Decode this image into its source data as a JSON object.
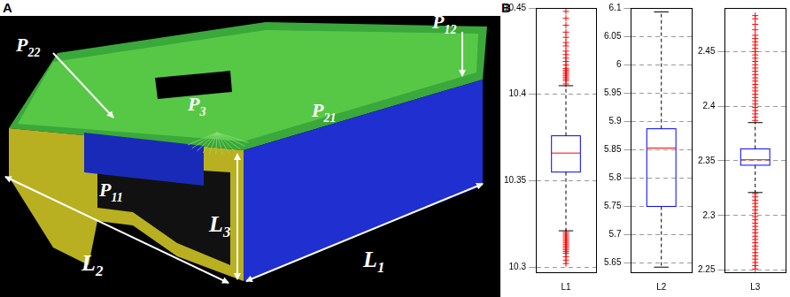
{
  "panel_labels": [
    "A",
    "B"
  ],
  "diagram": {
    "labels": [
      {
        "text": "P",
        "sub": "22"
      },
      {
        "text": "P",
        "sub": "12"
      },
      {
        "text": "P",
        "sub": "3"
      },
      {
        "text": "P",
        "sub": "21"
      },
      {
        "text": "P",
        "sub": "11"
      },
      {
        "text": "L",
        "sub": "3"
      },
      {
        "text": "L",
        "sub": "2"
      },
      {
        "text": "L",
        "sub": "1"
      }
    ]
  },
  "chart_data": [
    {
      "type": "box",
      "categories": [
        "L1"
      ],
      "color": "#0000ff",
      "q1": 10.355,
      "median": 10.366,
      "q3": 10.376,
      "whisker_low": 10.321,
      "whisker_high": 10.405,
      "outliers": [
        10.406,
        10.408,
        10.409,
        10.41,
        10.411,
        10.412,
        10.413,
        10.414,
        10.415,
        10.417,
        10.419,
        10.421,
        10.423,
        10.425,
        10.428,
        10.43,
        10.433,
        10.436,
        10.44,
        10.444,
        10.448,
        10.302,
        10.304,
        10.306,
        10.308,
        10.309,
        10.31,
        10.311,
        10.312,
        10.313,
        10.314,
        10.315,
        10.316,
        10.317,
        10.318,
        10.319,
        10.32
      ],
      "ylim": [
        10.297,
        10.45
      ],
      "yticks": [
        10.3,
        10.35,
        10.4,
        10.45
      ],
      "grid": true
    },
    {
      "type": "box",
      "categories": [
        "L2"
      ],
      "color": "#0000ff",
      "q1": 5.75,
      "median": 5.853,
      "q3": 5.887,
      "whisker_low": 5.643,
      "whisker_high": 6.093,
      "outliers": [],
      "ylim": [
        5.634,
        6.1
      ],
      "yticks": [
        5.65,
        5.7,
        5.75,
        5.8,
        5.85,
        5.9,
        5.95,
        6,
        6.05,
        6.1
      ],
      "grid": true
    },
    {
      "type": "box",
      "categories": [
        "L3"
      ],
      "color": "#0000ff",
      "q1": 2.346,
      "median": 2.351,
      "q3": 2.361,
      "whisker_low": 2.321,
      "whisker_high": 2.385,
      "outliers": [
        2.251,
        2.254,
        2.257,
        2.26,
        2.263,
        2.266,
        2.269,
        2.272,
        2.275,
        2.278,
        2.281,
        2.284,
        2.287,
        2.29,
        2.293,
        2.296,
        2.299,
        2.302,
        2.305,
        2.308,
        2.311,
        2.314,
        2.317,
        2.32,
        2.387,
        2.39,
        2.393,
        2.396,
        2.399,
        2.402,
        2.405,
        2.408,
        2.411,
        2.414,
        2.417,
        2.42,
        2.423,
        2.426,
        2.429,
        2.432,
        2.435,
        2.438,
        2.441,
        2.444,
        2.447,
        2.45,
        2.453,
        2.456,
        2.459,
        2.462,
        2.465,
        2.47,
        2.475,
        2.48,
        2.483
      ],
      "ylim": [
        2.248,
        2.49
      ],
      "yticks": [
        2.25,
        2.3,
        2.35,
        2.4,
        2.45
      ],
      "grid": true
    }
  ]
}
